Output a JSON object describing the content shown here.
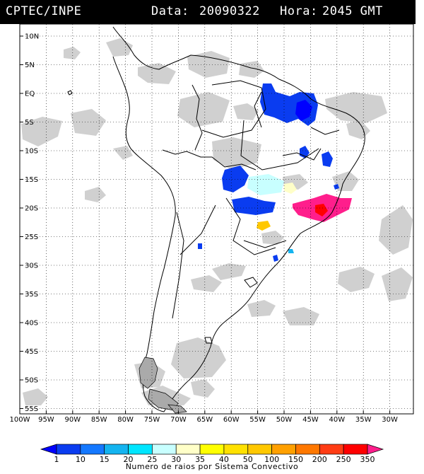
{
  "header": {
    "source": "CPTEC/INPE",
    "date_label": "Data:",
    "date_value": "20090322",
    "time_label": "Hora:",
    "time_value": "2045 GMT"
  },
  "map": {
    "lat_labels": [
      "10N",
      "5N",
      "EQ",
      "5S",
      "10S",
      "15S",
      "20S",
      "25S",
      "30S",
      "35S",
      "40S",
      "45S",
      "50S",
      "55S"
    ],
    "lon_labels": [
      "100W",
      "95W",
      "90W",
      "85W",
      "80W",
      "75W",
      "70W",
      "65W",
      "60W",
      "55W",
      "50W",
      "45W",
      "40W",
      "35W",
      "30W"
    ]
  },
  "colorbar": {
    "labels": [
      "1",
      "10",
      "15",
      "20",
      "25",
      "30",
      "35",
      "40",
      "50",
      "100",
      "150",
      "200",
      "250",
      "350"
    ],
    "colors": [
      "#0000ff",
      "#0a3cf0",
      "#1478ff",
      "#14b4f0",
      "#00e6ff",
      "#c8ffff",
      "#ffffc8",
      "#ffff00",
      "#ffe100",
      "#ffc800",
      "#ffa000",
      "#ff7800",
      "#ff3c14",
      "#ff0000",
      "#ff1e8c"
    ],
    "title": "Numero de raios por Sistema Convectivo"
  },
  "colors": {
    "cloud_gray": "#c8c8c8",
    "coast": "#000000",
    "grid": "#000000"
  }
}
